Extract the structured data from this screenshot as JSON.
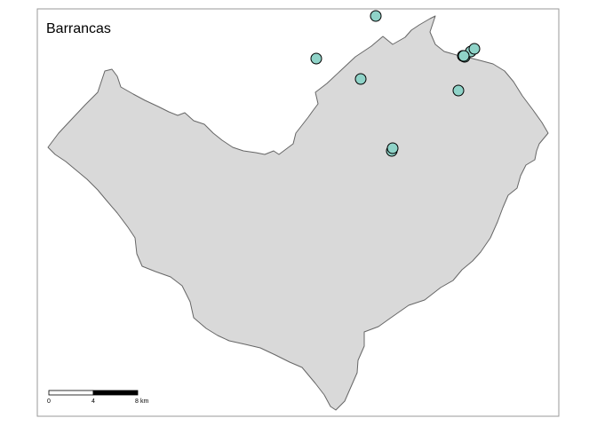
{
  "map": {
    "title": "Barrancas",
    "colors": {
      "land_fill": "#d9d9d9",
      "land_stroke": "#666666",
      "point_fill": "#8fd3c8",
      "point_stroke": "#000000",
      "frame_stroke": "#999999"
    },
    "point_count": 11
  },
  "scale_bar": {
    "ticks": [
      "0",
      "4",
      "8"
    ],
    "unit": "km"
  }
}
